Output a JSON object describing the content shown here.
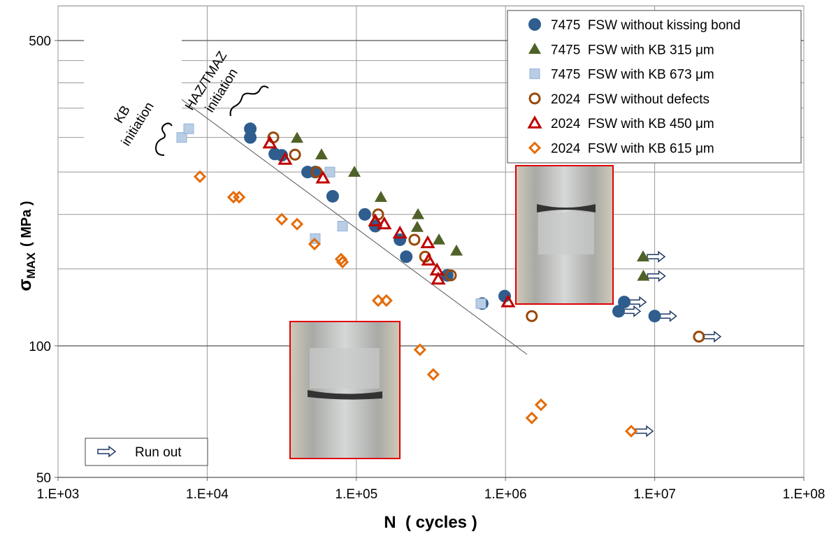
{
  "chart_data": {
    "type": "scatter",
    "xlabel": "N  ( cycles )",
    "ylabel": "σ",
    "ylabel_sub": "MAX",
    "ylabel_unit": "( MPa )",
    "log_x": true,
    "log_y": true,
    "grid": true,
    "xlim": [
      1000,
      100000000
    ],
    "xticks": [
      {
        "value": 1000,
        "label": "1.E+03"
      },
      {
        "value": 10000,
        "label": "1.E+04"
      },
      {
        "value": 100000,
        "label": "1.E+05"
      },
      {
        "value": 1000000,
        "label": "1.E+06"
      },
      {
        "value": 10000000,
        "label": "1.E+07"
      },
      {
        "value": 100000000,
        "label": "1.E+08"
      }
    ],
    "ylim": [
      50,
      600
    ],
    "yticks": [
      50,
      100,
      500
    ],
    "yminor": [
      150,
      200,
      250,
      300,
      350,
      400,
      450
    ],
    "legend": "upper right",
    "series": [
      {
        "name": "7475  FSW without kissing bond",
        "color": "#2f5d8e",
        "marker": "circle",
        "filled": true,
        "x": [
          19450,
          19450,
          28380,
          31600,
          47100,
          53000,
          69400,
          114000,
          134000,
          196000,
          216000,
          407000,
          698000,
          987000,
          5730000,
          6250000,
          10000000
        ],
        "values": [
          314,
          300,
          275,
          273,
          250,
          250,
          220,
          200,
          188,
          175,
          160,
          145,
          125,
          130,
          120,
          126,
          117
        ],
        "runout": [
          false,
          false,
          false,
          false,
          false,
          false,
          false,
          false,
          false,
          false,
          false,
          false,
          false,
          false,
          true,
          true,
          true
        ]
      },
      {
        "name": "7475  FSW with KB 315 μm",
        "color": "#4f6228",
        "marker": "triangle",
        "filled": true,
        "x": [
          40060,
          58400,
          97000,
          146000,
          259000,
          256000,
          358000,
          469000,
          8360000,
          8400000
        ],
        "values": [
          299,
          274,
          250,
          219,
          200,
          187,
          175,
          165,
          160,
          144.5
        ],
        "runout": [
          false,
          false,
          false,
          false,
          false,
          false,
          false,
          false,
          true,
          true
        ]
      },
      {
        "name": "7475  FSW with KB 673 μm",
        "color": "#b9cde5",
        "marker": "square",
        "filled": true,
        "x": [
          6750,
          7520,
          66500,
          80800,
          53000,
          684000
        ],
        "values": [
          300,
          314,
          250,
          188,
          176,
          125
        ],
        "runout": [
          false,
          false,
          false,
          false,
          false,
          false
        ]
      },
      {
        "name": "2024  FSW without defects",
        "color": "#984807",
        "marker": "circle",
        "filled": false,
        "x": [
          27750,
          38800,
          54200,
          140000,
          245000,
          289000,
          430000,
          1500000,
          19800000
        ],
        "values": [
          300,
          274,
          250,
          200,
          175,
          160,
          145,
          117,
          105
        ],
        "runout": [
          false,
          false,
          false,
          false,
          false,
          false,
          false,
          false,
          true
        ]
      },
      {
        "name": "2024  FSW with KB 450 μm",
        "color": "#c00000",
        "marker": "triangle",
        "filled": false,
        "x": [
          26300,
          33300,
          59700,
          134000,
          154000,
          196000,
          301000,
          305000,
          347000,
          354000,
          1040000
        ],
        "values": [
          291,
          267,
          242,
          193,
          190,
          181,
          172,
          157,
          149,
          142,
          126
        ],
        "runout": [
          false,
          false,
          false,
          false,
          false,
          false,
          false,
          false,
          false,
          false,
          false
        ]
      },
      {
        "name": "2024  FSW with KB 615 μm",
        "color": "#e46c0a",
        "marker": "diamond",
        "filled": false,
        "x": [
          8940,
          15000,
          16400,
          31600,
          40060,
          52400,
          79000,
          80800,
          140000,
          159000,
          267000,
          328000,
          1500000,
          1730000,
          6960000
        ],
        "values": [
          244,
          219,
          219,
          195,
          190,
          171,
          158,
          155.5,
          127,
          127,
          98,
          86,
          68.4,
          73.3,
          63.8
        ],
        "runout": [
          false,
          false,
          false,
          false,
          false,
          false,
          false,
          false,
          false,
          false,
          false,
          false,
          false,
          false,
          true
        ]
      }
    ],
    "runout_label": "Run out",
    "annotations": [
      {
        "lines": [
          "KB",
          "initiation"
        ]
      },
      {
        "lines": [
          "HAZ/TMAZ",
          "initiation"
        ]
      }
    ]
  }
}
